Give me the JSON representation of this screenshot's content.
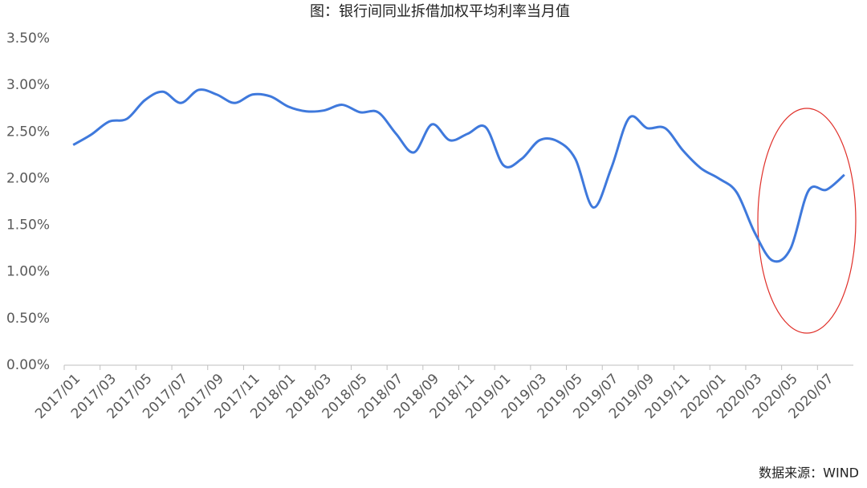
{
  "chart_data": {
    "type": "line",
    "title": "图：银行间同业拆借加权平均利率当月值",
    "source": "数据来源：WIND",
    "categories": [
      "2017/01",
      null,
      "2017/03",
      null,
      "2017/05",
      null,
      "2017/07",
      null,
      "2017/09",
      null,
      "2017/11",
      null,
      "2018/01",
      null,
      "2018/03",
      null,
      "2018/05",
      null,
      "2018/07",
      null,
      "2018/09",
      null,
      "2018/11",
      null,
      "2019/01",
      null,
      "2019/03",
      null,
      "2019/05",
      null,
      "2019/07",
      null,
      "2019/09",
      null,
      "2019/11",
      null,
      "2020/01",
      null,
      "2020/03",
      null,
      "2020/05",
      null,
      "2020/07",
      null
    ],
    "series": [
      {
        "color": "#3f79dc",
        "values": [
          2.36,
          2.47,
          2.61,
          2.64,
          2.84,
          2.93,
          2.81,
          2.95,
          2.9,
          2.81,
          2.9,
          2.88,
          2.77,
          2.72,
          2.73,
          2.79,
          2.71,
          2.71,
          2.48,
          2.28,
          2.58,
          2.41,
          2.48,
          2.55,
          2.14,
          2.21,
          2.41,
          2.4,
          2.21,
          1.69,
          2.11,
          2.65,
          2.54,
          2.54,
          2.3,
          2.11,
          2.0,
          1.85,
          1.42,
          1.12,
          1.25,
          1.87,
          1.88,
          2.04
        ]
      }
    ],
    "ylim": [
      0,
      3.5
    ],
    "yticks": [
      {
        "value": 0,
        "label": "0.00%"
      },
      {
        "value": 0.5,
        "label": "0.50%"
      },
      {
        "value": 1,
        "label": "1.00%"
      },
      {
        "value": 1.5,
        "label": "1.50%"
      },
      {
        "value": 2,
        "label": "2.00%"
      },
      {
        "value": 2.5,
        "label": "2.50%"
      },
      {
        "value": 3,
        "label": "3.00%"
      },
      {
        "value": 3.5,
        "label": "3.50%"
      }
    ],
    "grid": false
  }
}
